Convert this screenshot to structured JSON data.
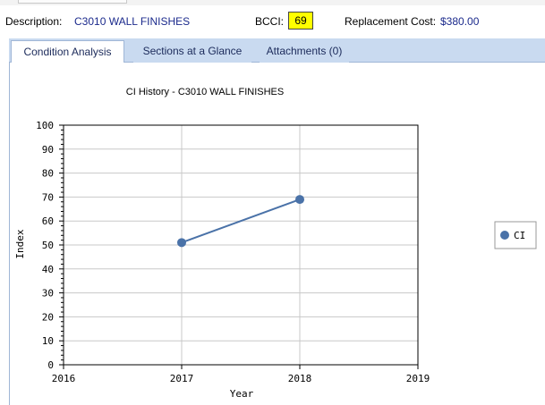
{
  "header": {
    "description_label": "Description:",
    "description_value": "C3010 WALL FINISHES",
    "bcci_label": "BCCI:",
    "bcci_value": "69",
    "replacement_label": "Replacement Cost:",
    "replacement_value": "$380.00"
  },
  "tabs": [
    {
      "label": "Condition Analysis",
      "active": true
    },
    {
      "label": "Sections at a Glance",
      "active": false
    },
    {
      "label": "Attachments (0)",
      "active": false
    }
  ],
  "colors": {
    "series": "#4a72a8",
    "bcci_highlight": "#ffff00",
    "tab_bar": "#c9daf0",
    "link_text": "#1b2a8c"
  },
  "chart_data": {
    "type": "line",
    "title": "CI History - C3010 WALL FINISHES",
    "xlabel": "Year",
    "ylabel": "Index",
    "xlim": [
      2016,
      2019
    ],
    "ylim": [
      0,
      100
    ],
    "x_ticks": [
      "2016",
      "2017",
      "2018",
      "2019"
    ],
    "y_ticks": [
      "0",
      "10",
      "20",
      "30",
      "40",
      "50",
      "60",
      "70",
      "80",
      "90",
      "100"
    ],
    "grid": true,
    "legend_position": "right",
    "series": [
      {
        "name": "CI",
        "x": [
          2017,
          2018
        ],
        "y": [
          51,
          69
        ]
      }
    ]
  }
}
